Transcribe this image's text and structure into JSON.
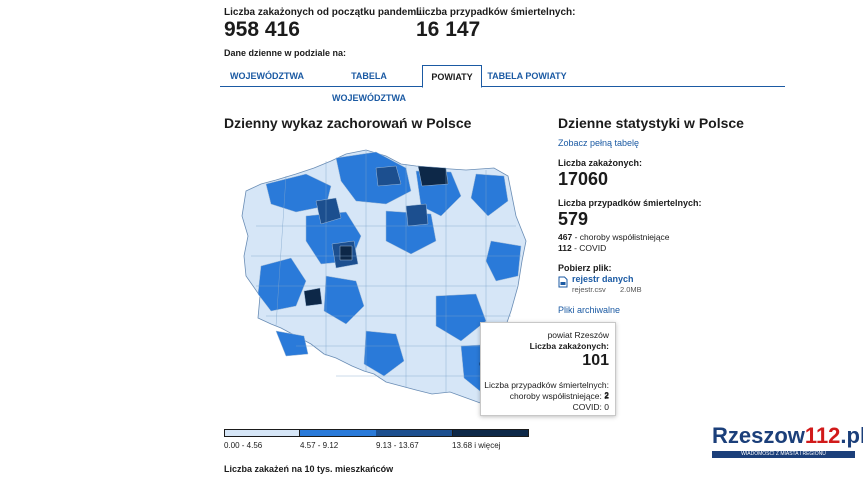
{
  "stats": {
    "total_cases_label": "Liczba zakażonych od początku pandemii:",
    "total_cases_value": "958 416",
    "total_deaths_label": "Liczba przypadków śmiertelnych:",
    "total_deaths_value": "16 147",
    "daily_breakdown_label": "Dane dzienne w podziale na:"
  },
  "tabs": [
    {
      "label": "WOJEWÓDZTWA"
    },
    {
      "label": "TABELA WOJEWÓDZTWA"
    },
    {
      "label": "POWIATY"
    },
    {
      "label": "TABELA POWIATY"
    }
  ],
  "map": {
    "title": "Dzienny wykaz zachorowań w Polsce",
    "legend": [
      {
        "label": "0.00 - 4.56",
        "color": "#d6e6f7"
      },
      {
        "label": "4.57 - 9.12",
        "color": "#2a7ad9"
      },
      {
        "label": "9.13 - 13.67",
        "color": "#1c4f8f"
      },
      {
        "label": "13.68 i więcej",
        "color": "#0d2848"
      }
    ],
    "legend_caption": "Liczba zakażeń na 10 tys. mieszkańców"
  },
  "tooltip": {
    "region": "powiat Rzeszów",
    "cases_label": "Liczba zakażonych:",
    "cases_value": "101",
    "deaths_label": "Liczba przypadków śmiertelnych:",
    "deaths_value": "2",
    "comorbid_label": "choroby współistniejące:",
    "comorbid_value": "2",
    "covid_label": "COVID:",
    "covid_value": "0"
  },
  "daily": {
    "title": "Dzienne statystyki w Polsce",
    "full_table_link": "Zobacz pełną tabelę",
    "cases_label": "Liczba zakażonych:",
    "cases_value": "17060",
    "deaths_label": "Liczba przypadków śmiertelnych:",
    "deaths_value": "579",
    "comorbid_value": "467",
    "comorbid_label": "- choroby współistniejące",
    "covid_value": "112",
    "covid_label": "- COVID",
    "download_label": "Pobierz plik:",
    "file_link": "rejestr danych",
    "file_name": "rejestr.csv",
    "file_size": "2.0MB",
    "archive_link": "Pliki archiwalne"
  },
  "watermark": {
    "brand_prefix": "Rzeszow",
    "brand_number": "112",
    "brand_suffix": ".pl",
    "tagline": "WIADOMOŚCI Z MIASTA I REGIONU"
  }
}
